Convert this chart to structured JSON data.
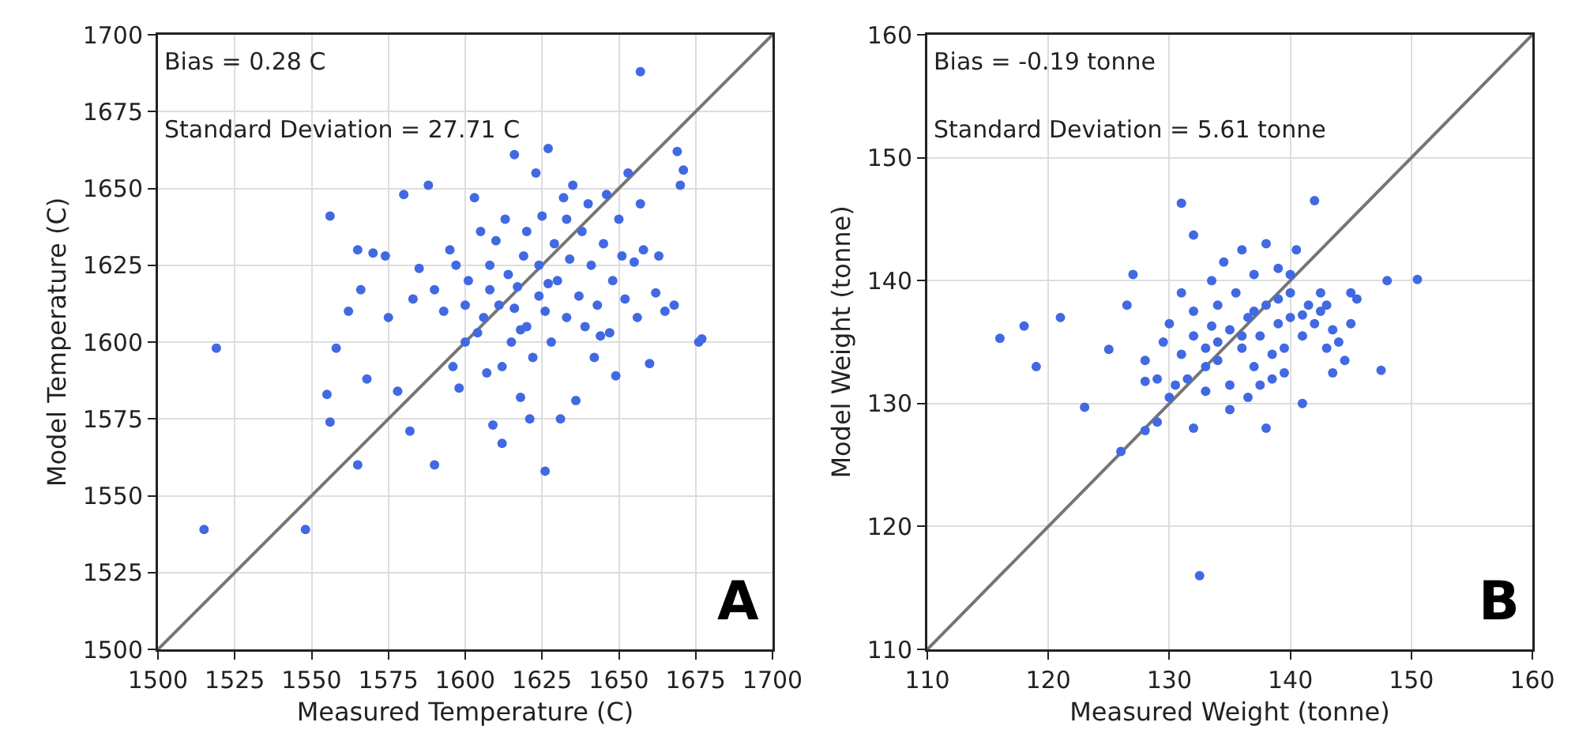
{
  "chart_data": [
    {
      "type": "scatter",
      "xlabel": "Measured Temperature (C)",
      "ylabel": "Model Temperature (C)",
      "xlim": [
        1500,
        1700
      ],
      "xticks": [
        1500,
        1525,
        1550,
        1575,
        1600,
        1625,
        1650,
        1675,
        1700
      ],
      "ylim": [
        1500,
        1700
      ],
      "yticks": [
        1500,
        1525,
        1550,
        1575,
        1600,
        1625,
        1650,
        1675,
        1700
      ],
      "grid": true,
      "marker": "circle",
      "annotations": [
        "Bias = 0.28 C",
        "Standard Deviation = 27.71 C",
        "A"
      ],
      "series": [
        {
          "color": "#4169e1",
          "x": [
            1515,
            1519,
            1548,
            1657,
            1676,
            1677,
            1556,
            1555,
            1556,
            1565,
            1558,
            1562,
            1565,
            1566,
            1568,
            1570,
            1574,
            1575,
            1578,
            1580,
            1582,
            1585,
            1588,
            1590,
            1590,
            1593,
            1595,
            1596,
            1598,
            1600,
            1600,
            1601,
            1603,
            1605,
            1606,
            1607,
            1608,
            1609,
            1610,
            1611,
            1612,
            1613,
            1614,
            1615,
            1616,
            1616,
            1617,
            1618,
            1619,
            1620,
            1620,
            1621,
            1622,
            1623,
            1624,
            1624,
            1625,
            1626,
            1626,
            1627,
            1628,
            1629,
            1630,
            1631,
            1632,
            1633,
            1634,
            1635,
            1636,
            1637,
            1638,
            1639,
            1640,
            1641,
            1642,
            1643,
            1645,
            1646,
            1647,
            1648,
            1649,
            1650,
            1651,
            1652,
            1653,
            1655,
            1656,
            1657,
            1658,
            1660,
            1662,
            1663,
            1665,
            1668,
            1669,
            1670,
            1671,
            1604,
            1608,
            1612,
            1618,
            1627,
            1633,
            1644,
            1597,
            1583
          ],
          "values": [
            1539,
            1598,
            1539,
            1688,
            1600,
            1601,
            1641,
            1583,
            1574,
            1560,
            1598,
            1610,
            1630,
            1617,
            1588,
            1629,
            1628,
            1608,
            1584,
            1648,
            1571,
            1624,
            1651,
            1560,
            1617,
            1610,
            1630,
            1592,
            1585,
            1600,
            1612,
            1620,
            1647,
            1636,
            1608,
            1590,
            1625,
            1573,
            1633,
            1612,
            1567,
            1640,
            1622,
            1600,
            1661,
            1611,
            1618,
            1582,
            1628,
            1605,
            1636,
            1575,
            1595,
            1655,
            1615,
            1625,
            1641,
            1558,
            1610,
            1663,
            1600,
            1632,
            1620,
            1575,
            1647,
            1608,
            1627,
            1651,
            1581,
            1615,
            1636,
            1605,
            1645,
            1625,
            1595,
            1612,
            1632,
            1648,
            1603,
            1620,
            1589,
            1640,
            1628,
            1614,
            1655,
            1626,
            1608,
            1645,
            1630,
            1593,
            1616,
            1628,
            1610,
            1612,
            1662,
            1651,
            1656,
            1603,
            1617,
            1592,
            1604,
            1619,
            1640,
            1602,
            1625,
            1614
          ]
        },
        {
          "type": "line",
          "marker": "none",
          "color": "#757575",
          "x": [
            1500,
            1700
          ],
          "values": [
            1500,
            1700
          ]
        }
      ]
    },
    {
      "type": "scatter",
      "xlabel": "Measured Weight (tonne)",
      "ylabel": "Model Weight (tonne)",
      "xlim": [
        110,
        160
      ],
      "xticks": [
        110,
        120,
        130,
        140,
        150,
        160
      ],
      "ylim": [
        110,
        160
      ],
      "yticks": [
        110,
        120,
        130,
        140,
        150,
        160
      ],
      "grid": true,
      "marker": "circle",
      "annotations": [
        "Bias = -0.19 tonne",
        "Standard Deviation = 5.61 tonne",
        "B"
      ],
      "series": [
        {
          "color": "#4169e1",
          "x": [
            116,
            118,
            119,
            121,
            123,
            125,
            126,
            126.5,
            127,
            128,
            128,
            129,
            129.5,
            130,
            130,
            131,
            131,
            131.5,
            132,
            132,
            132.5,
            132,
            133,
            133,
            133.5,
            134,
            134,
            134.5,
            135,
            135,
            135.5,
            136,
            136,
            136.5,
            137,
            137,
            137.5,
            138,
            138,
            138,
            138.5,
            139,
            139,
            139.5,
            140,
            140,
            140.5,
            141,
            141,
            141.5,
            142,
            142,
            142.5,
            143,
            143,
            143.5,
            144,
            144.5,
            145,
            145,
            145.5,
            147.5,
            148,
            150.5,
            133.5,
            134,
            136,
            137,
            138.5,
            139,
            140,
            141,
            143.5,
            131,
            130.5,
            135,
            136.5,
            133,
            132,
            129,
            128,
            137.5,
            139.5,
            142.5
          ],
          "values": [
            135.3,
            136.3,
            133,
            137,
            129.7,
            134.4,
            126.1,
            138,
            140.5,
            127.8,
            133.5,
            128.5,
            135,
            130.5,
            136.5,
            146.3,
            139,
            132,
            143.7,
            128,
            116,
            137.5,
            134.5,
            131,
            140,
            138,
            133.5,
            141.5,
            136,
            131.5,
            139,
            134.5,
            142.5,
            137,
            133,
            140.5,
            135.5,
            143,
            128,
            138,
            132,
            136.5,
            141,
            134.5,
            139,
            137,
            142.5,
            135.5,
            130,
            138,
            146.5,
            136.5,
            139,
            134.5,
            138,
            136,
            135,
            133.5,
            136.5,
            139,
            138.5,
            132.7,
            140,
            140.1,
            136.3,
            135,
            135.5,
            137.5,
            134,
            138.5,
            140.5,
            137.2,
            132.5,
            134,
            131.5,
            129.5,
            130.5,
            133,
            135.5,
            132,
            131.8,
            131.5,
            132.5,
            137.5
          ]
        },
        {
          "type": "line",
          "marker": "none",
          "color": "#757575",
          "x": [
            110,
            160
          ],
          "values": [
            110,
            160
          ]
        }
      ]
    }
  ]
}
